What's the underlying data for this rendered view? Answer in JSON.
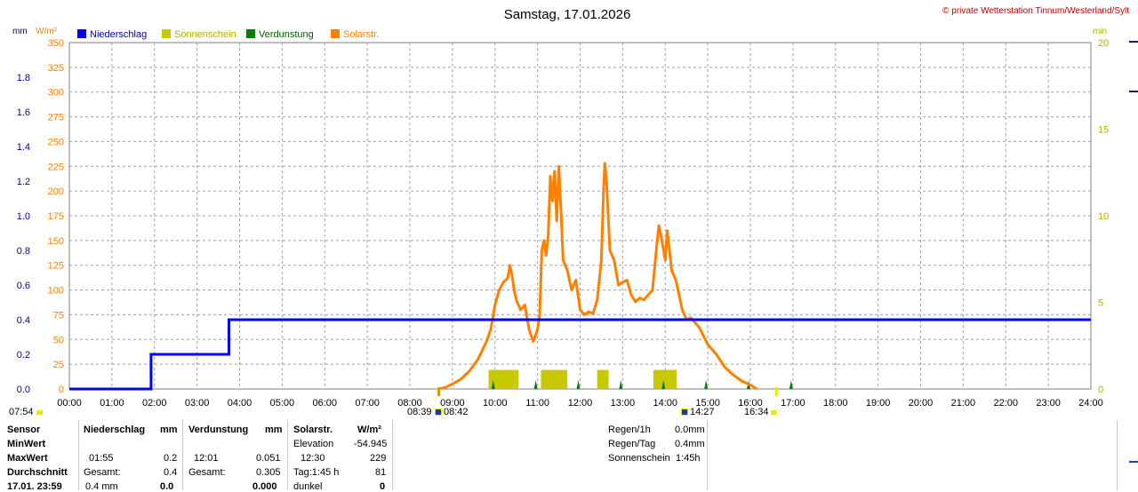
{
  "header": {
    "title": "Samstag, 17.01.2026",
    "copyright": "© private Wetterstation Tinnum/Westerland/Sylt"
  },
  "legend": {
    "unit_mm": "mm",
    "unit_wm2": "W/m²",
    "unit_min": "min",
    "items": [
      {
        "label": "Niederschlag",
        "color": "#0000ff"
      },
      {
        "label": "Sonnenschein",
        "color": "#c8c800"
      },
      {
        "label": "Verdunstung",
        "color": "#008000"
      },
      {
        "label": "Solarstr.",
        "color": "#ff8000"
      }
    ]
  },
  "markers": {
    "sunrise": "07:54",
    "sunshine_start": "08:39",
    "solar_start": "08:42",
    "solar_peak": "14:27",
    "sunset": "16:34"
  },
  "chart_data": {
    "type": "line",
    "title": "Samstag, 17.01.2026",
    "x_ticks": [
      "00:00",
      "01:00",
      "02:00",
      "03:00",
      "04:00",
      "05:00",
      "06:00",
      "07:00",
      "08:00",
      "09:00",
      "10:00",
      "11:00",
      "12:00",
      "13:00",
      "14:00",
      "15:00",
      "16:00",
      "17:00",
      "18:00",
      "19:00",
      "20:00",
      "21:00",
      "22:00",
      "23:00",
      "24:00"
    ],
    "xlim_hours": [
      0,
      24
    ],
    "axes": {
      "mm": {
        "ticks": [
          "0.0",
          "0.2",
          "0.4",
          "0.6",
          "0.8",
          "1.0",
          "1.2",
          "1.4",
          "1.6",
          "1.8"
        ],
        "range": [
          0,
          2.0
        ]
      },
      "wm2": {
        "ticks": [
          "0",
          "25",
          "50",
          "75",
          "100",
          "125",
          "150",
          "175",
          "200",
          "225",
          "250",
          "275",
          "300",
          "325",
          "350"
        ],
        "range": [
          0,
          350
        ]
      },
      "min": {
        "ticks": [
          "0",
          "5",
          "10",
          "15",
          "20"
        ],
        "range": [
          0,
          20
        ]
      }
    },
    "grid": true,
    "legend_position": "top-left",
    "series": [
      {
        "name": "Niederschlag",
        "axis": "mm",
        "color": "#0000ff",
        "step": true,
        "points": [
          [
            0,
            0
          ],
          [
            1.92,
            0
          ],
          [
            1.92,
            0.2
          ],
          [
            3.75,
            0.2
          ],
          [
            3.75,
            0.4
          ],
          [
            24,
            0.4
          ]
        ]
      },
      {
        "name": "Solarstr.",
        "axis": "wm2",
        "color": "#ff8000",
        "points": [
          [
            8.7,
            0
          ],
          [
            8.85,
            2
          ],
          [
            9.0,
            5
          ],
          [
            9.2,
            10
          ],
          [
            9.4,
            18
          ],
          [
            9.6,
            30
          ],
          [
            9.8,
            48
          ],
          [
            9.9,
            60
          ],
          [
            10.0,
            85
          ],
          [
            10.1,
            100
          ],
          [
            10.2,
            108
          ],
          [
            10.3,
            112
          ],
          [
            10.35,
            125
          ],
          [
            10.4,
            115
          ],
          [
            10.45,
            100
          ],
          [
            10.5,
            90
          ],
          [
            10.6,
            80
          ],
          [
            10.7,
            85
          ],
          [
            10.8,
            60
          ],
          [
            10.9,
            48
          ],
          [
            11.0,
            60
          ],
          [
            11.05,
            75
          ],
          [
            11.1,
            140
          ],
          [
            11.15,
            150
          ],
          [
            11.2,
            135
          ],
          [
            11.25,
            155
          ],
          [
            11.3,
            215
          ],
          [
            11.35,
            190
          ],
          [
            11.4,
            220
          ],
          [
            11.45,
            170
          ],
          [
            11.5,
            225
          ],
          [
            11.55,
            180
          ],
          [
            11.6,
            130
          ],
          [
            11.7,
            120
          ],
          [
            11.8,
            100
          ],
          [
            11.9,
            110
          ],
          [
            12.0,
            80
          ],
          [
            12.1,
            75
          ],
          [
            12.2,
            78
          ],
          [
            12.3,
            76
          ],
          [
            12.4,
            90
          ],
          [
            12.5,
            130
          ],
          [
            12.55,
            200
          ],
          [
            12.58,
            228
          ],
          [
            12.62,
            210
          ],
          [
            12.7,
            140
          ],
          [
            12.8,
            130
          ],
          [
            12.9,
            105
          ],
          [
            13.0,
            108
          ],
          [
            13.1,
            110
          ],
          [
            13.2,
            95
          ],
          [
            13.3,
            88
          ],
          [
            13.4,
            92
          ],
          [
            13.5,
            90
          ],
          [
            13.6,
            95
          ],
          [
            13.7,
            100
          ],
          [
            13.8,
            145
          ],
          [
            13.85,
            165
          ],
          [
            13.9,
            155
          ],
          [
            14.0,
            130
          ],
          [
            14.05,
            160
          ],
          [
            14.15,
            120
          ],
          [
            14.25,
            110
          ],
          [
            14.4,
            80
          ],
          [
            14.5,
            70
          ],
          [
            14.6,
            72
          ],
          [
            14.8,
            62
          ],
          [
            15.0,
            45
          ],
          [
            15.2,
            35
          ],
          [
            15.4,
            22
          ],
          [
            15.6,
            14
          ],
          [
            15.8,
            8
          ],
          [
            16.0,
            4
          ],
          [
            16.15,
            0
          ]
        ]
      },
      {
        "name": "Sonnenschein",
        "axis": "min",
        "color": "#c8c800",
        "bars": true,
        "bars_data": [
          [
            9.85,
            10.45,
            1.1
          ],
          [
            10.45,
            10.5,
            1.1
          ],
          [
            10.5,
            10.55,
            1.1
          ],
          [
            11.08,
            11.7,
            1.1
          ],
          [
            12.4,
            12.67,
            1.1
          ],
          [
            13.72,
            14.27,
            1.1
          ]
        ]
      },
      {
        "name": "Verdunstung",
        "axis": "wm2",
        "color": "#008000",
        "spikes": true,
        "times": [
          10.0,
          11.0,
          12.0,
          13.0,
          14.0,
          15.0,
          16.0,
          17.0
        ]
      }
    ]
  },
  "stats": {
    "sensor_label": "Sensor",
    "minwert_label": "MinWert",
    "maxwert_label": "MaxWert",
    "durchschnitt_label": "Durchschnitt",
    "date_label": "17.01. 23:59",
    "niederschlag": {
      "title": "Niederschlag",
      "unit": "mm",
      "max_time": "01:55",
      "max_value": "0.2",
      "gesamt_label": "Gesamt:",
      "gesamt_value": "0.4",
      "avg_unit": "0.4 mm",
      "avg_value": "0.0"
    },
    "verdunstung": {
      "title": "Verdunstung",
      "unit": "mm",
      "max_time": "12:01",
      "max_value": "0.051",
      "gesamt_label": "Gesamt:",
      "gesamt_value": "0.305",
      "avg_value": "0.000"
    },
    "solar": {
      "title": "Solarstr.",
      "unit": "W/m²",
      "elevation_label": "Elevation",
      "elevation_value": "-54.945",
      "max_time": "12:30",
      "max_value": "229",
      "tag_label": "Tag:1:45 h",
      "tag_value": "81",
      "dunkel_label": "dunkel",
      "dunkel_value": "0"
    },
    "summary": [
      {
        "label": "Regen/1h",
        "value": "0.0mm"
      },
      {
        "label": "Regen/Tag",
        "value": "0.4mm"
      },
      {
        "label": "Sonnenschein",
        "value": "1:45h"
      }
    ]
  }
}
